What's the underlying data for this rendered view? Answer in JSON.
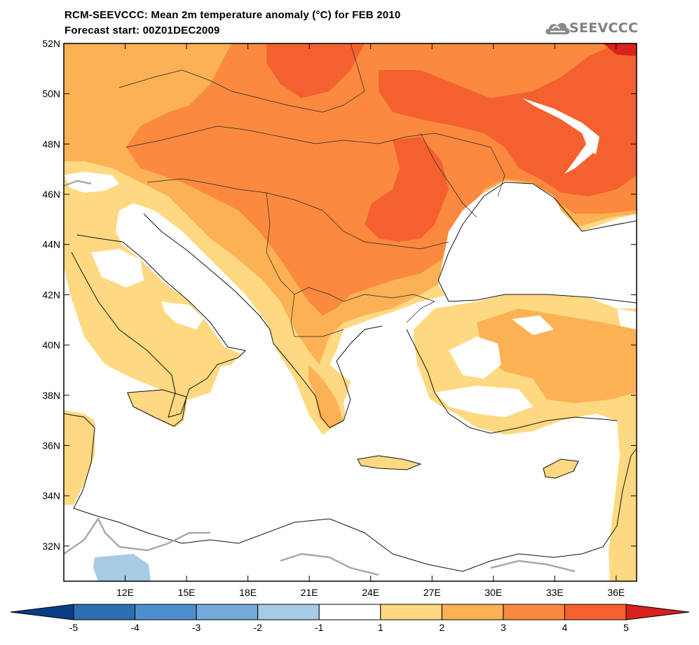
{
  "title_line1": "RCM-SEEVCCC: Mean 2m temperature anomaly (°C) for FEB 2010",
  "title_line2": "Forecast start: 00Z01DEC2009",
  "logo_text": "SEEVCCC",
  "map": {
    "lat_labels": [
      "52N",
      "50N",
      "48N",
      "46N",
      "44N",
      "42N",
      "40N",
      "38N",
      "36N",
      "34N",
      "32N"
    ],
    "lon_labels": [
      "12E",
      "15E",
      "18E",
      "21E",
      "24E",
      "27E",
      "30E",
      "33E",
      "36E"
    ],
    "lat_values": [
      52,
      50,
      48,
      46,
      44,
      42,
      40,
      38,
      36,
      34,
      32
    ],
    "lon_values": [
      12,
      15,
      18,
      21,
      24,
      27,
      30,
      33,
      36
    ],
    "lat_range": [
      30.6,
      52.0
    ],
    "lon_range": [
      9.0,
      37.0
    ]
  },
  "colorbar": {
    "labels": [
      "-5",
      "-4",
      "-3",
      "-2",
      "-1",
      "1",
      "2",
      "3",
      "4",
      "5"
    ],
    "colors": [
      "#083e87",
      "#2c6fb2",
      "#4c8fcc",
      "#74a9da",
      "#a5cbe5",
      "#ffffff",
      "#fed981",
      "#fdb155",
      "#fb8a3f",
      "#f4612f",
      "#d9211d"
    ]
  },
  "fill_colors": {
    "c1": "#fed981",
    "c2": "#fdb155",
    "c3": "#fb8a3f",
    "c4": "#f4612f",
    "c5": "#d9211d",
    "blue": "#a5cbe5",
    "sea": "#ffffff"
  }
}
